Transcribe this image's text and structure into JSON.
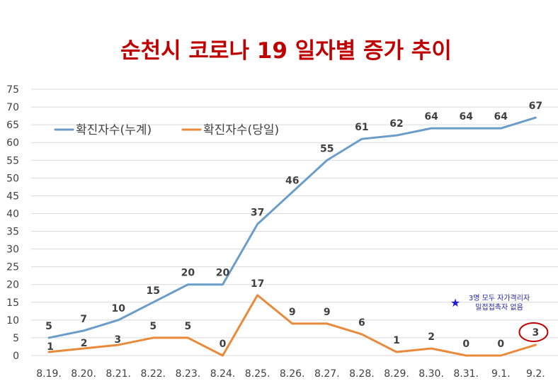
{
  "chart_data": {
    "type": "line",
    "title": "순천시 코로나 19 일자별 증가 추이",
    "categories": [
      "8.19.",
      "8.20.",
      "8.21.",
      "8.22.",
      "8.23.",
      "8.24.",
      "8.25.",
      "8.26.",
      "8.27.",
      "8.28.",
      "8.29.",
      "8.30.",
      "8.31.",
      "9.1.",
      "9.2."
    ],
    "series": [
      {
        "name": "확진자수(누계)",
        "color": "#6a9ec9",
        "values": [
          5,
          7,
          10,
          15,
          20,
          20,
          37,
          46,
          55,
          61,
          62,
          64,
          64,
          64,
          67
        ]
      },
      {
        "name": "확진자수(당일)",
        "color": "#e98a3a",
        "values": [
          1,
          2,
          3,
          5,
          5,
          0,
          17,
          9,
          9,
          6,
          1,
          2,
          0,
          0,
          3
        ]
      }
    ],
    "ylim": [
      0,
      75
    ],
    "yticks": [
      0,
      5,
      10,
      15,
      20,
      25,
      30,
      35,
      40,
      45,
      50,
      55,
      60,
      65,
      70,
      75
    ],
    "grid": true,
    "legend": "top-left",
    "annotation": {
      "lines": [
        "3명 모두 자가격리자",
        "밀접접촉자 없음"
      ],
      "marker": "star",
      "marker_color": "#1f1fd0",
      "highlight_color": "#c00000",
      "highlight_index": 14
    }
  }
}
